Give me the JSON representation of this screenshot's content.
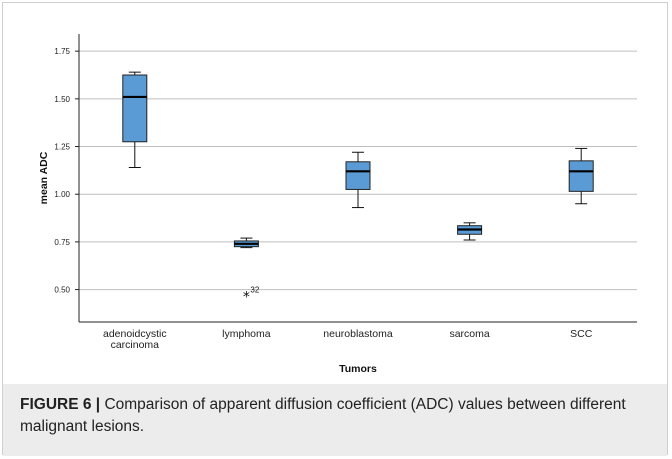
{
  "chart_data": {
    "type": "boxplot",
    "xlabel": "Tumors",
    "ylabel": "mean ADC",
    "ylim": [
      0.33,
      1.84
    ],
    "yticks": [
      "0.50",
      "0.75",
      "1.00",
      "1.25",
      "1.50",
      "1.75"
    ],
    "grid": "horizontal",
    "box_color": "#5b9bd5",
    "categories": [
      {
        "label_lines": [
          "adenoidcystic",
          "carcinoma"
        ],
        "min": 1.14,
        "q1": 1.275,
        "median": 1.51,
        "q3": 1.625,
        "max": 1.64
      },
      {
        "label_lines": [
          "lymphoma"
        ],
        "min": 0.72,
        "q1": 0.725,
        "median": 0.74,
        "q3": 0.755,
        "max": 0.77,
        "outliers": [
          {
            "value": 0.48,
            "label": "32",
            "marker": "*"
          }
        ]
      },
      {
        "label_lines": [
          "neuroblastoma"
        ],
        "min": 0.93,
        "q1": 1.025,
        "median": 1.12,
        "q3": 1.17,
        "max": 1.22
      },
      {
        "label_lines": [
          "sarcoma"
        ],
        "min": 0.76,
        "q1": 0.79,
        "median": 0.815,
        "q3": 0.835,
        "max": 0.85
      },
      {
        "label_lines": [
          "SCC"
        ],
        "min": 0.95,
        "q1": 1.015,
        "median": 1.12,
        "q3": 1.175,
        "max": 1.24
      }
    ]
  },
  "caption": {
    "label": "FIGURE 6 |",
    "text": " Comparison of apparent diffusion coefficient (ADC) values between different malignant lesions."
  }
}
